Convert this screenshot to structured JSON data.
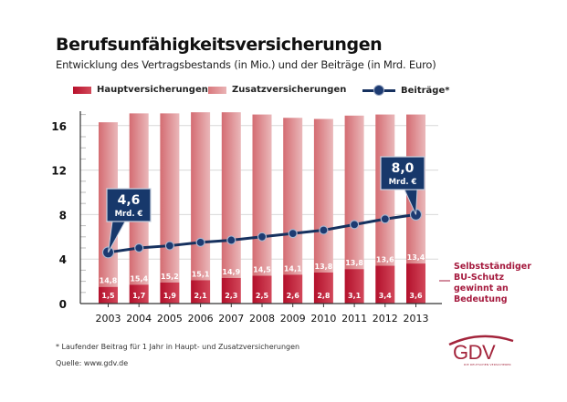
{
  "header": {
    "title": "Berufsunfähigkeitsversicherungen",
    "subtitle": "Entwicklung des Vertragsbestands (in Mio.) und der Beiträge (in Mrd. Euro)"
  },
  "legend": {
    "main": "Hauptversicherungen",
    "additional": "Zusatzversicherungen",
    "contributions": "Beiträge*"
  },
  "callouts": [
    {
      "value": "4,6",
      "unit": "Mrd. €",
      "year": "2003"
    },
    {
      "value": "8,0",
      "unit": "Mrd. €",
      "year": "2013"
    }
  ],
  "annotation": [
    "Selbstständiger",
    "BU-Schutz",
    "gewinnt an",
    "Bedeutung"
  ],
  "footnote": "* Laufender Beitrag für 1 Jahr in Haupt- und Zusatzversicherungen",
  "source": "Quelle: www.gdv.de",
  "logo": {
    "text": "GDV",
    "subtext": "DIE DEUTSCHEN VERSICHERER"
  },
  "colors": {
    "main": "#b8102c",
    "additional": "#dd8a8d",
    "line": "#16315f",
    "annotation": "#a51a3e",
    "callout": "#17386b"
  },
  "chart_data": {
    "type": "bar",
    "stacked": true,
    "title": "Berufsunfähigkeitsversicherungen",
    "subtitle": "Entwicklung des Vertragsbestands (in Mio.) und der Beiträge (in Mrd. Euro)",
    "xlabel": "",
    "ylabel": "",
    "ylim": [
      0,
      17
    ],
    "yticks": [
      0,
      4,
      8,
      12,
      16
    ],
    "grid": true,
    "legend_position": "top",
    "categories": [
      "2003",
      "2004",
      "2005",
      "2006",
      "2007",
      "2008",
      "2009",
      "2010",
      "2011",
      "2012",
      "2013"
    ],
    "series": [
      {
        "name": "Hauptversicherungen",
        "type": "bar",
        "values": [
          1.5,
          1.7,
          1.9,
          2.1,
          2.3,
          2.5,
          2.6,
          2.8,
          3.1,
          3.4,
          3.6
        ],
        "labels": [
          "1,5",
          "1,7",
          "1,9",
          "2,1",
          "2,3",
          "2,5",
          "2,6",
          "2,8",
          "3,1",
          "3,4",
          "3,6"
        ]
      },
      {
        "name": "Zusatzversicherungen",
        "type": "bar",
        "values": [
          14.8,
          15.4,
          15.2,
          15.1,
          14.9,
          14.5,
          14.1,
          13.8,
          13.8,
          13.6,
          13.4
        ],
        "labels": [
          "14,8",
          "15,4",
          "15,2",
          "15,1",
          "14,9",
          "14,5",
          "14,1",
          "13,8",
          "13,8",
          "13,6",
          "13,4"
        ]
      },
      {
        "name": "Beiträge*",
        "type": "line",
        "values": [
          4.6,
          5.0,
          5.2,
          5.5,
          5.7,
          6.0,
          6.3,
          6.6,
          7.1,
          7.6,
          8.0
        ]
      }
    ]
  }
}
